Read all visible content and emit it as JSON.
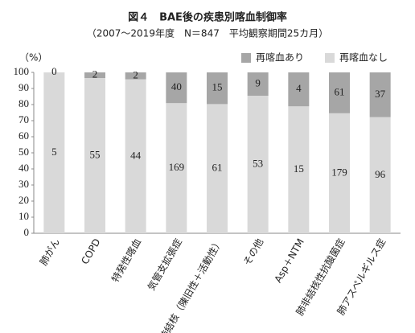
{
  "chart_data": {
    "type": "stacked_bar",
    "title": "図４　BAE後の疾患別喀血制御率",
    "subtitle": "（2007〜2019年度　N＝847　平均観察期間25カ月）",
    "ylabel": "（%）",
    "categories": [
      "肺がん",
      "COPD",
      "特発性喀血",
      "気管支拡張症",
      "肺結核（陳旧性＋活動性）",
      "その他",
      "Asp＋NTM",
      "肺非結核性抗酸菌症",
      "肺アスペルギルス症"
    ],
    "series": [
      {
        "name": "再喀血なし",
        "color": "#d9d9d9",
        "values": [
          100,
          96.5,
          95.7,
          80.9,
          80.3,
          85.5,
          78.9,
          74.6,
          72.2
        ],
        "n": [
          5,
          55,
          44,
          169,
          61,
          53,
          15,
          179,
          96
        ]
      },
      {
        "name": "再喀血あり",
        "color": "#a6a6a6",
        "values": [
          0,
          3.5,
          4.3,
          19.1,
          19.7,
          14.5,
          21.1,
          25.4,
          27.8
        ],
        "n": [
          0,
          2,
          2,
          40,
          15,
          9,
          4,
          61,
          37
        ]
      }
    ],
    "ylim": [
      0,
      100
    ],
    "yticks": [
      0,
      10,
      20,
      30,
      40,
      50,
      60,
      70,
      80,
      90,
      100
    ],
    "grid": false,
    "legend": "top-right"
  }
}
